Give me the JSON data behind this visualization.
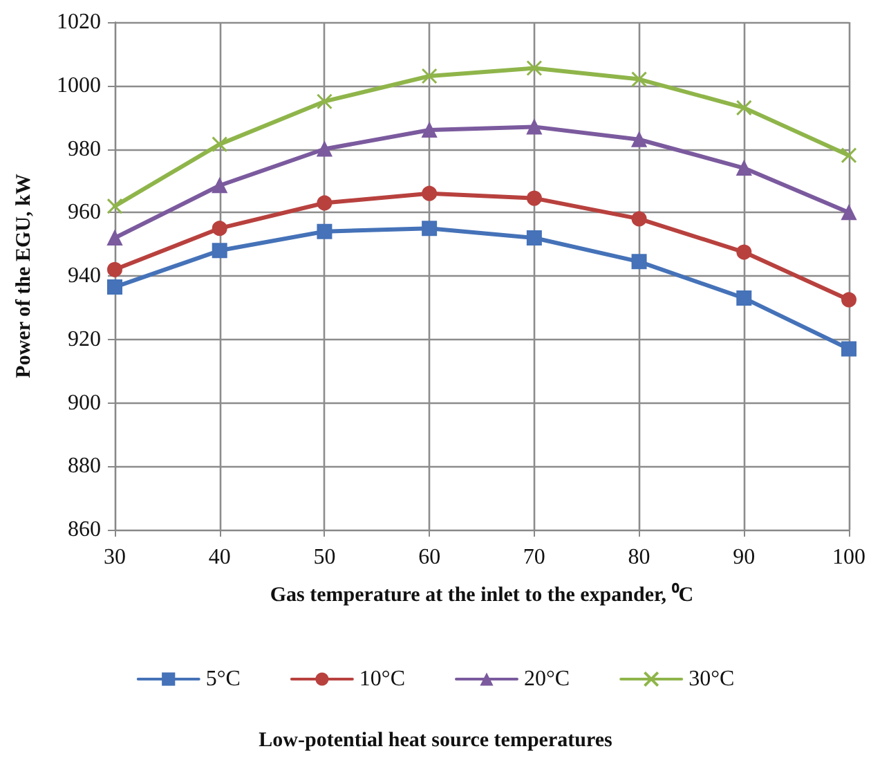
{
  "chart_data": {
    "type": "line",
    "xlabel": "Gas temperature at the inlet to the expander, ⁰C",
    "ylabel": "Power of the EGU, kW",
    "legend_title": "Low-potential heat source temperatures",
    "x": [
      30,
      40,
      50,
      60,
      70,
      80,
      90,
      100
    ],
    "xlim": [
      30,
      100
    ],
    "xticks": [
      30,
      40,
      50,
      60,
      70,
      80,
      90,
      100
    ],
    "ylim": [
      860,
      1020
    ],
    "yticks": [
      860,
      880,
      900,
      920,
      940,
      960,
      980,
      1000,
      1020
    ],
    "grid": true,
    "legend": "bottom",
    "series": [
      {
        "name": "5°C",
        "color": "#4572b8",
        "marker": "square",
        "values": [
          936.5,
          948,
          954,
          955,
          952,
          944.5,
          933,
          917
        ]
      },
      {
        "name": "10°C",
        "color": "#b8413e",
        "marker": "circle",
        "values": [
          942,
          955,
          963,
          966,
          964.5,
          958,
          947.5,
          932.5
        ]
      },
      {
        "name": "20°C",
        "color": "#7b5a9e",
        "marker": "triangle",
        "values": [
          952,
          968.5,
          980,
          986,
          987,
          983,
          974,
          960
        ]
      },
      {
        "name": "30°C",
        "color": "#8fb54a",
        "marker": "cross",
        "values": [
          962,
          981.5,
          995,
          1003,
          1005.5,
          1002,
          993,
          978
        ]
      }
    ]
  }
}
